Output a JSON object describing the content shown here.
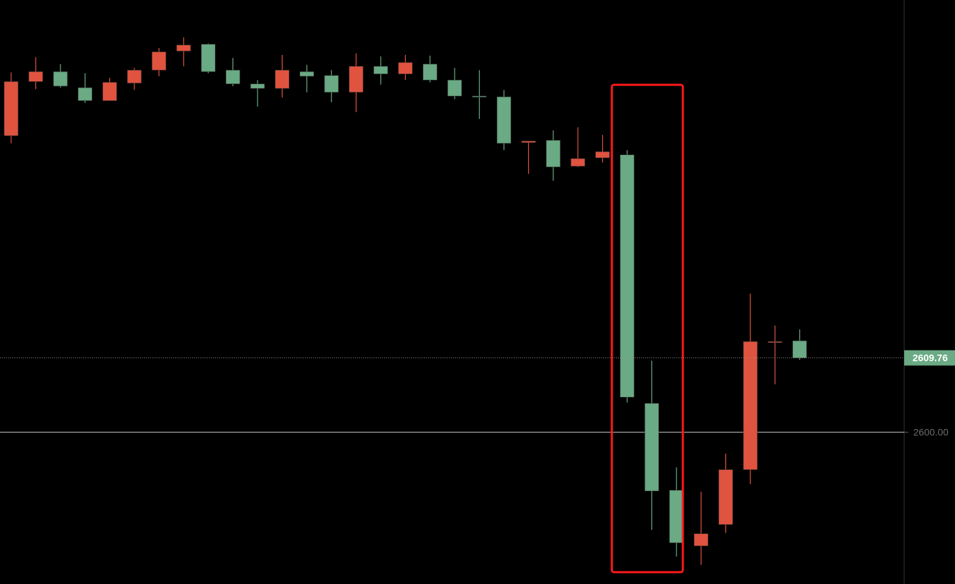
{
  "chart_data": {
    "type": "candlestick",
    "open": [
      2638.9,
      2646.0,
      2647.3,
      2645.2,
      2643.5,
      2645.8,
      2647.5,
      2650.0,
      2650.9,
      2647.5,
      2645.7,
      2645.1,
      2647.3,
      2646.8,
      2644.6,
      2648.0,
      2647.0,
      2648.3,
      2646.2,
      2644.1,
      2644.0,
      2638.0,
      2638.3,
      2634.9,
      2636.0,
      2636.4,
      2603.8,
      2592.4,
      2585.1,
      2587.9,
      2595.1,
      2611.8,
      2612.0
    ],
    "high": [
      2647.2,
      2649.2,
      2648.3,
      2647.1,
      2646.5,
      2647.8,
      2650.4,
      2651.8,
      2651.0,
      2649.1,
      2646.2,
      2649.5,
      2648.2,
      2647.5,
      2649.7,
      2649.3,
      2649.5,
      2649.4,
      2647.8,
      2647.5,
      2644.9,
      2638.2,
      2639.6,
      2640.0,
      2639.0,
      2637.0,
      2609.4,
      2595.4,
      2592.2,
      2597.2,
      2618.2,
      2614.0,
      2613.5
    ],
    "low": [
      2637.9,
      2645.0,
      2645.2,
      2643.2,
      2643.5,
      2644.9,
      2646.7,
      2648.0,
      2647.1,
      2645.4,
      2642.7,
      2643.9,
      2644.6,
      2643.3,
      2642.0,
      2645.6,
      2646.2,
      2645.9,
      2643.7,
      2641.1,
      2637.0,
      2633.9,
      2633.0,
      2634.8,
      2635.4,
      2603.9,
      2587.2,
      2583.7,
      2582.6,
      2586.8,
      2593.2,
      2606.3,
      2609.5
    ],
    "close": [
      2646.0,
      2647.3,
      2645.4,
      2643.5,
      2645.9,
      2647.5,
      2649.9,
      2650.8,
      2647.3,
      2645.7,
      2645.1,
      2647.5,
      2646.7,
      2644.6,
      2648.0,
      2647.0,
      2648.5,
      2646.2,
      2644.1,
      2644.0,
      2637.9,
      2638.2,
      2634.8,
      2635.9,
      2636.8,
      2604.6,
      2592.3,
      2585.5,
      2586.7,
      2595.1,
      2611.9,
      2611.9,
      2609.76
    ],
    "up_color": "#e0533f",
    "down_color": "#6aaa84",
    "ylim": [
      2580.1,
      2656.7
    ],
    "yticks": [
      {
        "value": 2600,
        "label": "2600.00"
      }
    ],
    "last_price": 2609.76
  }
}
